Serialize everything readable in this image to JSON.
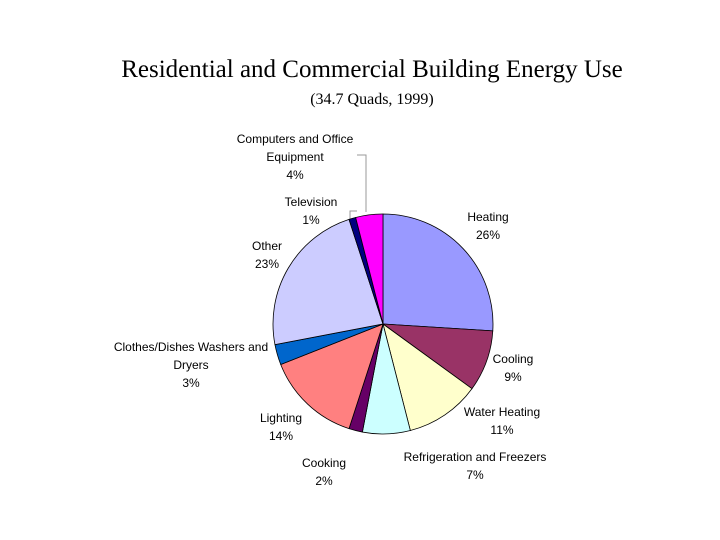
{
  "chart_data": {
    "type": "pie",
    "title": "Residential and Commercial Building Energy Use",
    "subtitle": "(34.7 Quads, 1999)",
    "categories": [
      "Heating",
      "Cooling",
      "Water Heating",
      "Refrigeration and Freezers",
      "Cooking",
      "Lighting",
      "Clothes/Dishes Washers and Dryers",
      "Other",
      "Television",
      "Computers and Office Equipment"
    ],
    "values": [
      26,
      9,
      11,
      7,
      2,
      14,
      3,
      23,
      1,
      4
    ],
    "value_labels": [
      "26%",
      "9%",
      "11%",
      "7%",
      "2%",
      "14%",
      "3%",
      "23%",
      "1%",
      "4%"
    ],
    "colors": [
      "#9999ff",
      "#993366",
      "#ffffcc",
      "#ccffff",
      "#660066",
      "#ff8080",
      "#0066cc",
      "#ccccff",
      "#000080",
      "#ff00ff"
    ]
  }
}
